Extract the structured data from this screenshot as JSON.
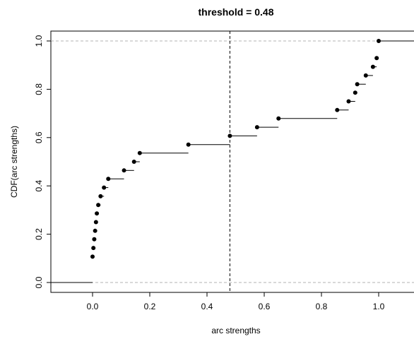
{
  "chart_data": {
    "type": "scatter",
    "title": "threshold =  0.48",
    "xlabel": "arc strengths",
    "ylabel": "CDF(arc strengths)",
    "xlim": [
      -0.15,
      1.12
    ],
    "ylim": [
      -0.04,
      1.04
    ],
    "x_ticks": [
      "0.0",
      "0.2",
      "0.4",
      "0.6",
      "0.8",
      "1.0"
    ],
    "y_ticks": [
      "0.0",
      "0.2",
      "0.4",
      "0.6",
      "0.8",
      "1.0"
    ],
    "x_tick_values": [
      0.0,
      0.2,
      0.4,
      0.6,
      0.8,
      1.0
    ],
    "y_tick_values": [
      0.0,
      0.2,
      0.4,
      0.6,
      0.8,
      1.0
    ],
    "threshold": 0.48,
    "reference_lines_y": [
      0.0,
      1.0
    ],
    "grid": false,
    "points": [
      {
        "x": 0.0,
        "y": 0.107
      },
      {
        "x": 0.003,
        "y": 0.143
      },
      {
        "x": 0.006,
        "y": 0.179
      },
      {
        "x": 0.009,
        "y": 0.214
      },
      {
        "x": 0.012,
        "y": 0.25
      },
      {
        "x": 0.015,
        "y": 0.286
      },
      {
        "x": 0.02,
        "y": 0.321
      },
      {
        "x": 0.028,
        "y": 0.357
      },
      {
        "x": 0.04,
        "y": 0.393
      },
      {
        "x": 0.055,
        "y": 0.429
      },
      {
        "x": 0.11,
        "y": 0.464
      },
      {
        "x": 0.145,
        "y": 0.5
      },
      {
        "x": 0.165,
        "y": 0.536
      },
      {
        "x": 0.335,
        "y": 0.571
      },
      {
        "x": 0.48,
        "y": 0.607
      },
      {
        "x": 0.575,
        "y": 0.643
      },
      {
        "x": 0.65,
        "y": 0.679
      },
      {
        "x": 0.855,
        "y": 0.714
      },
      {
        "x": 0.895,
        "y": 0.75
      },
      {
        "x": 0.918,
        "y": 0.786
      },
      {
        "x": 0.925,
        "y": 0.821
      },
      {
        "x": 0.955,
        "y": 0.857
      },
      {
        "x": 0.98,
        "y": 0.893
      },
      {
        "x": 0.993,
        "y": 0.929
      },
      {
        "x": 1.0,
        "y": 1.0
      }
    ]
  }
}
